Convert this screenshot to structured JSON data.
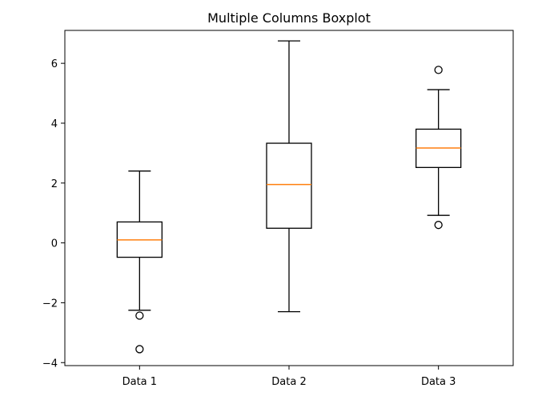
{
  "chart_data": {
    "type": "boxplot",
    "title": "Multiple Columns Boxplot",
    "xlabel": "",
    "ylabel": "",
    "categories": [
      "Data 1",
      "Data 2",
      "Data 3"
    ],
    "ylim": [
      -4.1,
      7.1
    ],
    "yticks": [
      -4,
      -2,
      0,
      2,
      4,
      6
    ],
    "ytick_labels": [
      "−4",
      "−2",
      "0",
      "2",
      "4",
      "6"
    ],
    "grid": false,
    "boxes": [
      {
        "label": "Data 1",
        "whisker_low": -2.25,
        "q1": -0.48,
        "median": 0.1,
        "q3": 0.7,
        "whisker_high": 2.4,
        "outliers": [
          -2.43,
          -3.55
        ]
      },
      {
        "label": "Data 2",
        "whisker_low": -2.3,
        "q1": 0.49,
        "median": 1.95,
        "q3": 3.33,
        "whisker_high": 6.75,
        "outliers": []
      },
      {
        "label": "Data 3",
        "whisker_low": 0.92,
        "q1": 2.52,
        "median": 3.17,
        "q3": 3.8,
        "whisker_high": 5.12,
        "outliers": [
          5.78,
          0.6
        ]
      }
    ],
    "colors": {
      "box": "#000000",
      "median": "#ff7f0e",
      "axes": "#000000",
      "background": "#ffffff"
    }
  }
}
